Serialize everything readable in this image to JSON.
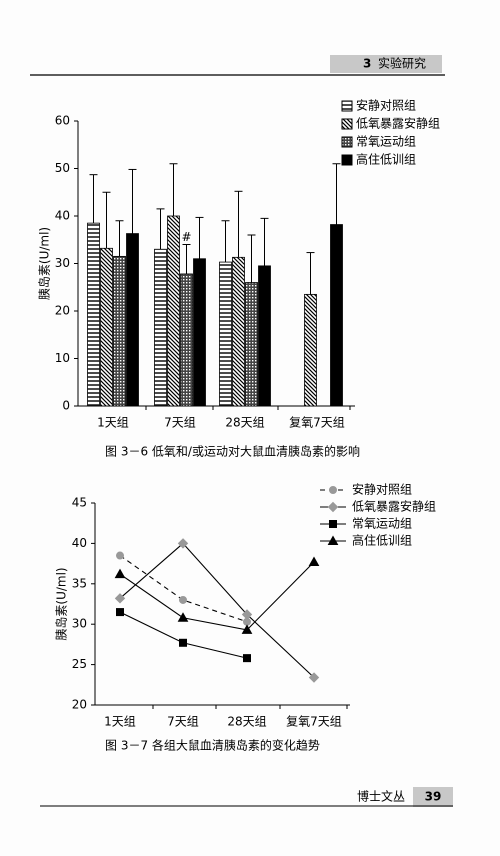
{
  "header": {
    "chapter": "3",
    "title": "实验研究"
  },
  "footer": {
    "series_title": "博士文丛",
    "page": "39"
  },
  "chart_data": [
    {
      "type": "bar",
      "caption": "图 3－6   低氧和/或运动对大鼠血清胰岛素的影响",
      "y_label": "胰岛素(U/ml)",
      "annotation": "#",
      "categories": [
        "1天组",
        "7天组",
        "28天组",
        "复氧7天组"
      ],
      "ylim": [
        0,
        60
      ],
      "yticks": [
        0,
        10,
        20,
        30,
        40,
        50,
        60
      ],
      "series": [
        {
          "name": "安静对照组",
          "pattern": "horizontal",
          "color": "#000",
          "values": [
            38.5,
            33,
            30.3,
            null
          ],
          "errors": [
            10.2,
            8.5,
            8.7,
            null
          ]
        },
        {
          "name": "低氧暴露安静组",
          "pattern": "diagonal",
          "color": "#000",
          "values": [
            33.2,
            40,
            31.3,
            23.5
          ],
          "errors": [
            11.8,
            11,
            13.9,
            8.8
          ]
        },
        {
          "name": "常氧运动组",
          "pattern": "dotted",
          "color": "#000",
          "values": [
            31.5,
            27.8,
            26,
            null
          ],
          "errors": [
            7.5,
            6.2,
            10,
            null
          ]
        },
        {
          "name": "高住低训组",
          "pattern": "solid",
          "color": "#000",
          "values": [
            36.3,
            31,
            29.5,
            38.2
          ],
          "errors": [
            13.5,
            8.7,
            10,
            12.8
          ]
        }
      ]
    },
    {
      "type": "line",
      "caption": "图 3－7   各组大鼠血清胰岛素的变化趋势",
      "y_label": "胰岛素(U/ml)",
      "categories": [
        "1天组",
        "7天组",
        "28天组",
        "复氧7天组"
      ],
      "ylim": [
        20,
        45
      ],
      "yticks": [
        20,
        25,
        30,
        35,
        40,
        45
      ],
      "series": [
        {
          "name": "安静对照组",
          "marker": "circle",
          "dashed": true,
          "color": "#999",
          "values": [
            38.5,
            33,
            30.3,
            null
          ]
        },
        {
          "name": "低氧暴露安静组",
          "marker": "diamond",
          "dashed": false,
          "color": "#999",
          "values": [
            33.2,
            40,
            31.2,
            23.4
          ]
        },
        {
          "name": "常氧运动组",
          "marker": "square",
          "dashed": false,
          "color": "#000",
          "values": [
            31.5,
            27.7,
            25.8,
            null
          ]
        },
        {
          "name": "高住低训组",
          "marker": "triangle",
          "dashed": false,
          "color": "#000",
          "values": [
            36.2,
            30.8,
            29.3,
            37.7
          ]
        }
      ]
    }
  ]
}
